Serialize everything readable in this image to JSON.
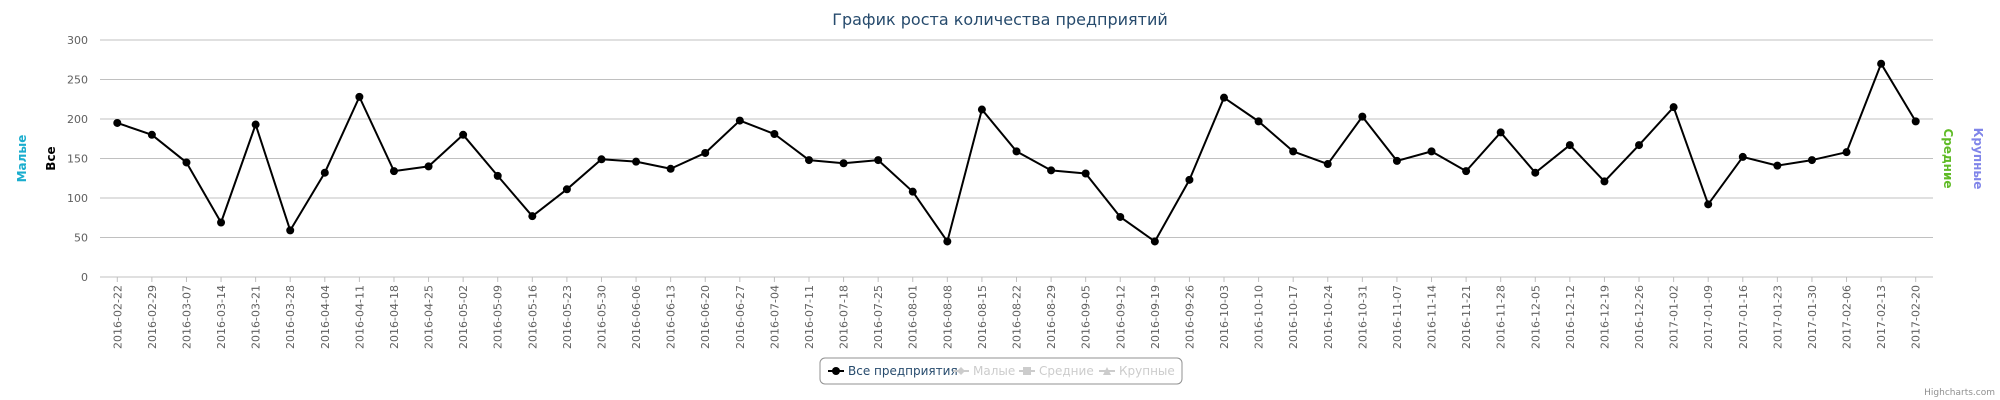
{
  "credits": "Highcharts.com",
  "legend": {
    "items": [
      {
        "label": "Все предприятия",
        "active": true,
        "symbol": "circle"
      },
      {
        "label": "Малые",
        "active": false,
        "symbol": "diamond"
      },
      {
        "label": "Средние",
        "active": false,
        "symbol": "square"
      },
      {
        "label": "Крупные",
        "active": false,
        "symbol": "triangle"
      }
    ]
  },
  "colors": {
    "title": "#274b6d",
    "series": "#000000",
    "axis_small": "#1aadce",
    "axis_all": "#000000",
    "axis_medium": "#5fbb26",
    "axis_large": "#8085e9",
    "grid": "#c0c0c0",
    "inactive": "#cccccc"
  },
  "chart_data": {
    "type": "line",
    "title": "График роста количества предприятий",
    "y_axes_left": [
      "Малые",
      "Все"
    ],
    "y_axes_right": [
      "Средние",
      "Крупные"
    ],
    "ylim": [
      0,
      300
    ],
    "yticks": [
      0,
      50,
      100,
      150,
      200,
      250,
      300
    ],
    "grid": true,
    "legend_position": "bottom-center",
    "categories": [
      "2016-02-22",
      "2016-02-29",
      "2016-03-07",
      "2016-03-14",
      "2016-03-21",
      "2016-03-28",
      "2016-04-04",
      "2016-04-11",
      "2016-04-18",
      "2016-04-25",
      "2016-05-02",
      "2016-05-09",
      "2016-05-16",
      "2016-05-23",
      "2016-05-30",
      "2016-06-06",
      "2016-06-13",
      "2016-06-20",
      "2016-06-27",
      "2016-07-04",
      "2016-07-11",
      "2016-07-18",
      "2016-07-25",
      "2016-08-01",
      "2016-08-08",
      "2016-08-15",
      "2016-08-22",
      "2016-08-29",
      "2016-09-05",
      "2016-09-12",
      "2016-09-19",
      "2016-09-26",
      "2016-10-03",
      "2016-10-10",
      "2016-10-17",
      "2016-10-24",
      "2016-10-31",
      "2016-11-07",
      "2016-11-14",
      "2016-11-21",
      "2016-11-28",
      "2016-12-05",
      "2016-12-12",
      "2016-12-19",
      "2016-12-26",
      "2017-01-02",
      "2017-01-09",
      "2017-01-16",
      "2017-01-23",
      "2017-01-30",
      "2017-02-06",
      "2017-02-13",
      "2017-02-20"
    ],
    "series": [
      {
        "name": "Все предприятия",
        "values": [
          195,
          180,
          145,
          69,
          193,
          59,
          132,
          228,
          134,
          140,
          180,
          128,
          77,
          111,
          149,
          146,
          137,
          157,
          198,
          181,
          148,
          144,
          148,
          108,
          45,
          212,
          159,
          135,
          131,
          76,
          45,
          123,
          227,
          197,
          159,
          143,
          203,
          147,
          159,
          134,
          183,
          132,
          167,
          121,
          167,
          215,
          92,
          152,
          141,
          148,
          158,
          270,
          197
        ]
      }
    ]
  }
}
